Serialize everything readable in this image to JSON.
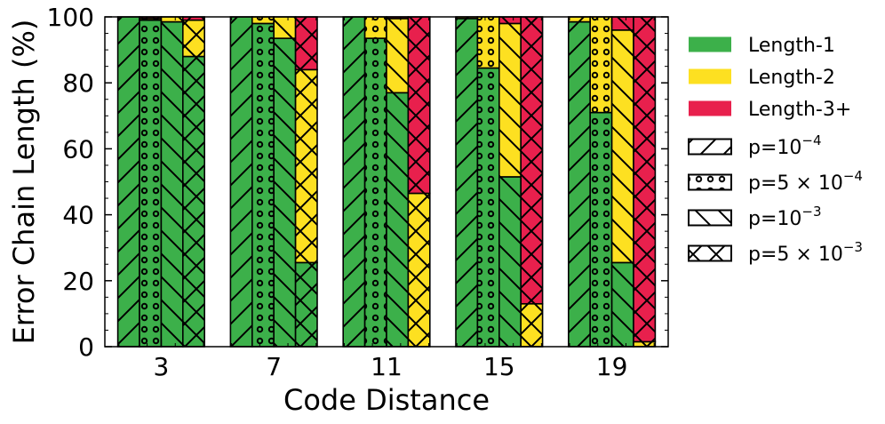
{
  "chart_data": {
    "type": "bar",
    "stacked": true,
    "xlabel": "Code Distance",
    "ylabel": "Error Chain Length (%)",
    "ylim": [
      0,
      100
    ],
    "yticks": [
      "0",
      "20",
      "40",
      "60",
      "80",
      "100"
    ],
    "categories": [
      "3",
      "7",
      "11",
      "15",
      "19"
    ],
    "grid": false,
    "legend_position": "outside-right",
    "stack_layers": [
      {
        "name": "Length-1",
        "color": "#3cb04a"
      },
      {
        "name": "Length-2",
        "color": "#fde021"
      },
      {
        "name": "Length-3+",
        "color": "#e8204d"
      }
    ],
    "error_rates": [
      {
        "label": "p=10",
        "exp": "−4",
        "hatch": "forward-diagonal"
      },
      {
        "label": "p=5 × 10",
        "exp": "−4",
        "hatch": "circles"
      },
      {
        "label": "p=10",
        "exp": "−3",
        "hatch": "backward-diagonal"
      },
      {
        "label": "p=5 × 10",
        "exp": "−3",
        "hatch": "crosshatch"
      }
    ],
    "values": [
      [
        [
          100,
          0,
          0
        ],
        [
          99,
          0.5,
          0.5
        ],
        [
          98.5,
          1.5,
          0
        ],
        [
          88,
          11,
          1
        ]
      ],
      [
        [
          100,
          0,
          0
        ],
        [
          98,
          2,
          0
        ],
        [
          93.5,
          6.5,
          0
        ],
        [
          25.5,
          58.5,
          16
        ]
      ],
      [
        [
          100,
          0,
          0
        ],
        [
          93.5,
          6.5,
          0
        ],
        [
          77,
          22.5,
          0.5
        ],
        [
          0,
          46.5,
          53.5
        ]
      ],
      [
        [
          99.5,
          0.5,
          0
        ],
        [
          84.5,
          15.5,
          0
        ],
        [
          51.5,
          46.5,
          2
        ],
        [
          0,
          13,
          87
        ]
      ],
      [
        [
          98.5,
          1.5,
          0
        ],
        [
          71,
          29,
          0
        ],
        [
          25.5,
          70.5,
          4
        ],
        [
          0,
          1.5,
          98.5
        ]
      ]
    ]
  }
}
